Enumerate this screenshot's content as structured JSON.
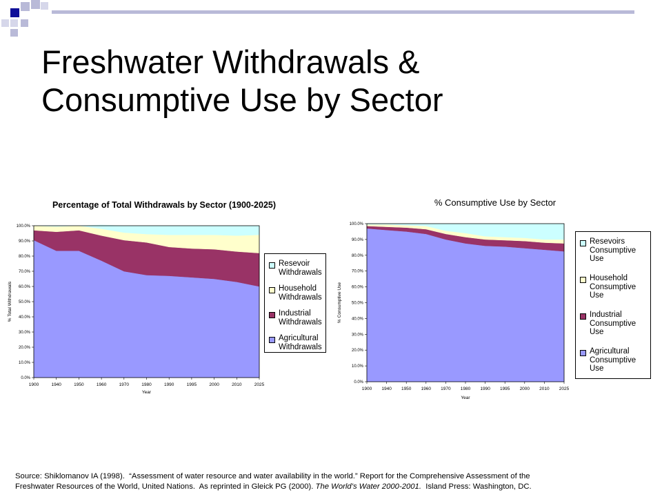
{
  "slide": {
    "title_line1": "Freshwater Withdrawals &",
    "title_line2": "Consumptive Use by Sector"
  },
  "colors": {
    "deco_navy": "#101099",
    "deco_lavender": "#b9bad8",
    "title_bar": "#b9bad8",
    "agricultural": "#9999ff",
    "industrial": "#993366",
    "household": "#ffffcc",
    "reservoirs": "#ccffff"
  },
  "source": {
    "line1": "Source: Shiklomanov IA (1998).  “Assessment of water resource and water availability in the world.” Report for the Comprehensive Assessment of the",
    "line2_prefix": "Freshwater Resources of the World, United Nations.  As reprinted in Gleick PG (2000). ",
    "line2_italic": "The World’s Water 2000-2001.",
    "line2_suffix": "  Island Press: Washington, DC."
  },
  "chart_data": [
    {
      "type": "area",
      "title": "Percentage of Total Withdrawals by Sector (1900-2025)",
      "xlabel": "Year",
      "ylabel": "% Total Withdrawals",
      "categories": [
        "1900",
        "1940",
        "1950",
        "1960",
        "1970",
        "1980",
        "1990",
        "1995",
        "2000",
        "2010",
        "2025"
      ],
      "ylim": [
        0,
        100
      ],
      "yticks": [
        "0.0%",
        "10.0%",
        "20.0%",
        "30.0%",
        "40.0%",
        "50.0%",
        "60.0%",
        "70.0%",
        "80.0%",
        "90.0%",
        "100.0%"
      ],
      "stacked": true,
      "series": [
        {
          "name": "Agricultural\nWithdrawals",
          "color": "#9999ff",
          "values": [
            90.5,
            83.5,
            83.5,
            77,
            70,
            67.5,
            67,
            66,
            65,
            63,
            60
          ]
        },
        {
          "name": "Industrial\nWithdrawals",
          "color": "#993366",
          "values": [
            6.5,
            12.5,
            13.5,
            16.5,
            20.5,
            21.5,
            19,
            19,
            19.5,
            20,
            22
          ]
        },
        {
          "name": "Household\nWithdrawals",
          "color": "#ffffcc",
          "values": [
            3,
            3.5,
            3,
            4.5,
            5,
            5.5,
            8,
            9,
            9.5,
            10.5,
            12
          ]
        },
        {
          "name": "Resevoir\nWithdrawals",
          "color": "#ccffff",
          "values": [
            0,
            0.5,
            0,
            2.5,
            4.5,
            5.5,
            6,
            6,
            6,
            6.5,
            6
          ]
        }
      ]
    },
    {
      "type": "area",
      "title": "% Consumptive Use by Sector",
      "xlabel": "Year",
      "ylabel": "% Consumptive Use",
      "categories": [
        "1900",
        "1940",
        "1950",
        "1960",
        "1970",
        "1980",
        "1990",
        "1995",
        "2000",
        "2010",
        "2025"
      ],
      "ylim": [
        0,
        100
      ],
      "yticks": [
        "0.0%",
        "10.0%",
        "20.0%",
        "30.0%",
        "40.0%",
        "50.0%",
        "60.0%",
        "70.0%",
        "80.0%",
        "90.0%",
        "100.0%"
      ],
      "stacked": true,
      "series": [
        {
          "name": "Agricultural\nConsumptive\nUse",
          "color": "#9999ff",
          "values": [
            97,
            96,
            95,
            93.5,
            90,
            87.5,
            86,
            85.5,
            84.5,
            83.5,
            82.5
          ]
        },
        {
          "name": "Industrial\nConsumptive\nUse",
          "color": "#993366",
          "values": [
            1.5,
            2,
            2.5,
            3,
            3.5,
            4,
            4,
            4,
            4.5,
            4.5,
            5
          ]
        },
        {
          "name": "Household\nConsumptive\nUse",
          "color": "#ffffcc",
          "values": [
            1,
            1.5,
            1.5,
            2,
            2,
            2.5,
            2,
            2,
            2,
            2,
            2.5
          ]
        },
        {
          "name": "Resevoirs\nConsumptive\nUse",
          "color": "#ccffff",
          "values": [
            0.5,
            0.5,
            1,
            1.5,
            4.5,
            6,
            8,
            8.5,
            9,
            10,
            10
          ]
        }
      ]
    }
  ]
}
